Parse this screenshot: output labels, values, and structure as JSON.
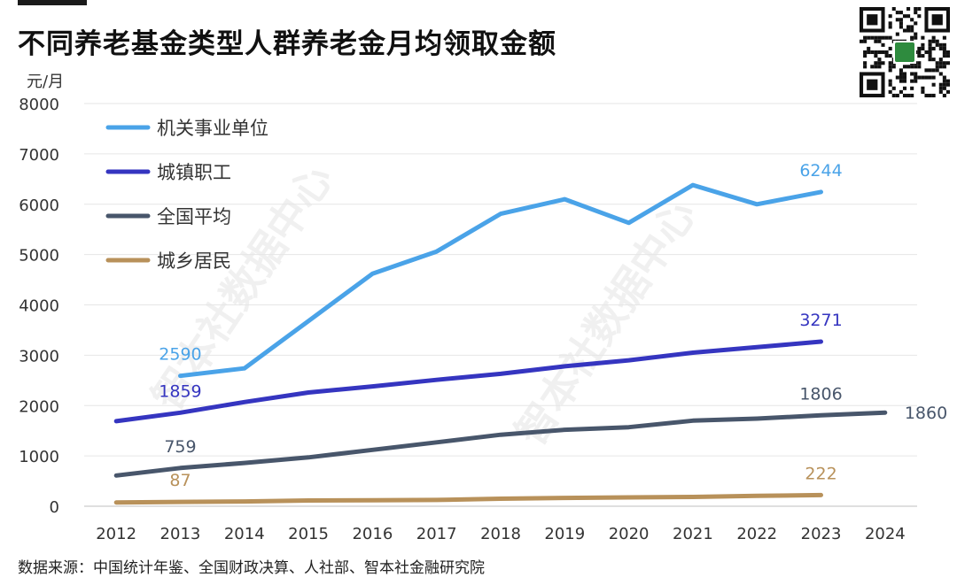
{
  "header": {
    "title": "不同养老基金类型人群养老金月均领取金额",
    "unit": "元/月"
  },
  "footer": {
    "source": "数据来源：中国统计年鉴、全国财政决算、人社部、智本社金融研究院"
  },
  "branding": {
    "watermark": "智本社数据中心",
    "qr_icon": "qr-code-icon"
  },
  "chart_data": {
    "type": "line",
    "x": [
      "2012",
      "2013",
      "2014",
      "2015",
      "2016",
      "2017",
      "2018",
      "2019",
      "2020",
      "2021",
      "2022",
      "2023",
      "2024"
    ],
    "ylim": [
      0,
      8000
    ],
    "yticks": [
      "0",
      "1000",
      "2000",
      "3000",
      "4000",
      "5000",
      "6000",
      "7000",
      "8000"
    ],
    "grid": true,
    "legend_position": "top-left",
    "series": [
      {
        "name": "机关事业单位",
        "color": "#4aa3e8",
        "values": [
          null,
          2590,
          2740,
          3680,
          4620,
          5060,
          5810,
          6100,
          5630,
          6380,
          6000,
          6244,
          null
        ],
        "labels": [
          {
            "x": "2013",
            "text": "2590"
          },
          {
            "x": "2023",
            "text": "6244"
          }
        ]
      },
      {
        "name": "城镇职工",
        "color": "#3535c0",
        "values": [
          1690,
          1859,
          2070,
          2260,
          2380,
          2510,
          2630,
          2780,
          2900,
          3050,
          3160,
          3271,
          null
        ],
        "labels": [
          {
            "x": "2013",
            "text": "1859"
          },
          {
            "x": "2023",
            "text": "3271"
          }
        ]
      },
      {
        "name": "全国平均",
        "color": "#48566b",
        "values": [
          610,
          759,
          860,
          970,
          1120,
          1270,
          1420,
          1520,
          1570,
          1700,
          1740,
          1806,
          1860
        ],
        "labels": [
          {
            "x": "2013",
            "text": "759"
          },
          {
            "x": "2023",
            "text": "1806"
          },
          {
            "x": "2024",
            "text": "1860"
          }
        ]
      },
      {
        "name": "城乡居民",
        "color": "#b8915a",
        "values": [
          75,
          87,
          95,
          115,
          120,
          125,
          150,
          165,
          175,
          185,
          205,
          222,
          null
        ],
        "labels": [
          {
            "x": "2013",
            "text": "87"
          },
          {
            "x": "2023",
            "text": "222"
          }
        ]
      }
    ]
  }
}
